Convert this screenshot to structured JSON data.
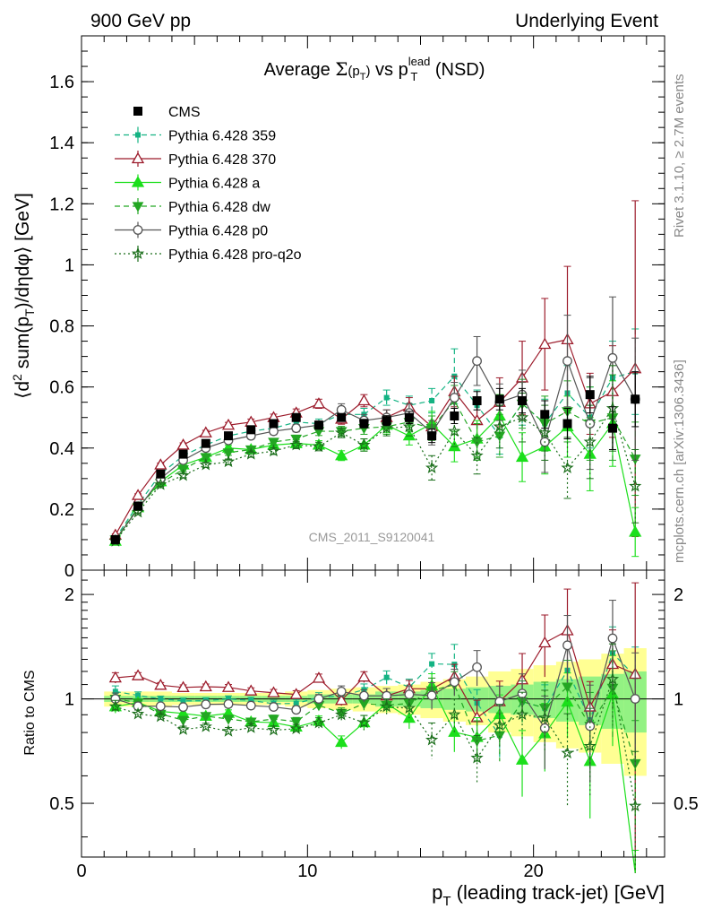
{
  "header": {
    "left": "900 GeV pp",
    "right": "Underlying Event"
  },
  "side": {
    "rivet": "Rivet 3.1.10, ≥ 2.7M events",
    "mcplots": "mcplots.cern.ch [arXiv:1306.3436]"
  },
  "chart_data": {
    "type": "line",
    "title": "Average Σ(pT) vs pT^lead (NSD)",
    "title_parts": {
      "pre": "Average ",
      "sigma": "Σ",
      "paren_open": "(p",
      "paren_sub": "T",
      "paren_close": ")",
      "mid": " vs p",
      "sup": "lead",
      "sub": "T",
      "post": " (NSD)"
    },
    "xlabel": "pT (leading track-jet) [GeV]",
    "xlabel_parts": {
      "p": "p",
      "sub": "T",
      "rest": " (leading track-jet) [GeV]"
    },
    "ylabel": "⟨d² sum(pT)/dηdφ⟩ [GeV]",
    "ylabel_parts": {
      "a": "⟨d",
      "sup": "2",
      "b": " sum(p",
      "sub": "T",
      "c": ")/dηdφ⟩ [GeV]"
    },
    "ratio_ylabel": "Ratio to CMS",
    "watermark": "CMS_2011_S9120041",
    "xlim": [
      0,
      25.8
    ],
    "ylim": [
      0,
      1.75
    ],
    "ratio_ylim": [
      0.35,
      2.35
    ],
    "ratio_log": true,
    "x_ticks": [
      0,
      10,
      20
    ],
    "y_ticks": [
      0,
      0.2,
      0.4,
      0.6,
      0.8,
      1,
      1.2,
      1.4,
      1.6
    ],
    "y_tick_labels": [
      "0",
      "0.2",
      "0.4",
      "0.6",
      "0.8",
      "1",
      "1.2",
      "1.4",
      "1.6"
    ],
    "ratio_ticks": [
      0.5,
      1,
      2
    ],
    "ratio_tick_labels": [
      "0.5",
      "1",
      "2"
    ],
    "x": [
      1.5,
      2.5,
      3.5,
      4.5,
      5.5,
      6.5,
      7.5,
      8.5,
      9.5,
      10.5,
      11.5,
      12.5,
      13.5,
      14.5,
      15.5,
      16.5,
      17.5,
      18.5,
      19.5,
      20.5,
      21.5,
      22.5,
      23.5,
      24.5
    ],
    "data_band_inner": [
      0.02,
      0.02,
      0.02,
      0.02,
      0.02,
      0.02,
      0.02,
      0.02,
      0.02,
      0.03,
      0.03,
      0.03,
      0.05,
      0.05,
      0.06,
      0.07,
      0.08,
      0.09,
      0.1,
      0.12,
      0.14,
      0.16,
      0.18,
      0.2
    ],
    "data_band_outer": [
      0.05,
      0.05,
      0.05,
      0.04,
      0.04,
      0.04,
      0.04,
      0.04,
      0.05,
      0.06,
      0.07,
      0.08,
      0.09,
      0.1,
      0.12,
      0.14,
      0.16,
      0.2,
      0.22,
      0.25,
      0.28,
      0.3,
      0.35,
      0.4
    ],
    "series": [
      {
        "name": "CMS",
        "color": "#000000",
        "marker": "square-filled",
        "line": "none",
        "values": [
          0.1,
          0.21,
          0.315,
          0.38,
          0.415,
          0.44,
          0.46,
          0.48,
          0.5,
          0.475,
          0.5,
          0.48,
          0.49,
          0.5,
          0.44,
          0.505,
          0.555,
          0.56,
          0.555,
          0.51,
          0.48,
          0.575,
          0.465,
          0.56
        ],
        "errors": [
          0.005,
          0.005,
          0.005,
          0.005,
          0.006,
          0.006,
          0.007,
          0.008,
          0.009,
          0.01,
          0.012,
          0.014,
          0.016,
          0.02,
          0.022,
          0.025,
          0.03,
          0.035,
          0.04,
          0.045,
          0.05,
          0.06,
          0.07,
          0.09
        ]
      },
      {
        "name": "Pythia 6.428 359",
        "color": "#14b383",
        "marker": "square-small",
        "line": "dashed",
        "values": [
          0.105,
          0.215,
          0.315,
          0.375,
          0.41,
          0.44,
          0.455,
          0.465,
          0.485,
          0.48,
          0.51,
          0.51,
          0.565,
          0.54,
          0.555,
          0.635,
          0.54,
          0.44,
          0.545,
          0.48,
          0.58,
          0.5,
          0.63,
          0.65
        ],
        "errors": [
          0.004,
          0.005,
          0.006,
          0.007,
          0.008,
          0.009,
          0.01,
          0.011,
          0.013,
          0.015,
          0.017,
          0.02,
          0.025,
          0.03,
          0.04,
          0.09,
          0.05,
          0.06,
          0.07,
          0.08,
          0.09,
          0.1,
          0.12,
          0.14
        ]
      },
      {
        "name": "Pythia 6.428 370",
        "color": "#9c1b2b",
        "marker": "triangle-open",
        "line": "solid",
        "values": [
          0.115,
          0.245,
          0.345,
          0.41,
          0.45,
          0.475,
          0.485,
          0.5,
          0.515,
          0.545,
          0.495,
          0.555,
          0.5,
          0.535,
          0.47,
          0.585,
          0.49,
          0.55,
          0.63,
          0.74,
          0.755,
          0.545,
          0.585,
          0.66
        ],
        "errors": [
          0.004,
          0.005,
          0.006,
          0.007,
          0.008,
          0.009,
          0.01,
          0.011,
          0.013,
          0.015,
          0.017,
          0.02,
          0.025,
          0.03,
          0.035,
          0.05,
          0.06,
          0.08,
          0.12,
          0.15,
          0.24,
          0.1,
          0.15,
          0.55
        ]
      },
      {
        "name": "Pythia 6.428 a",
        "color": "#1bdf1b",
        "marker": "triangle-filled",
        "line": "solid",
        "values": [
          0.095,
          0.205,
          0.29,
          0.345,
          0.37,
          0.4,
          0.395,
          0.41,
          0.415,
          0.41,
          0.375,
          0.41,
          0.475,
          0.44,
          0.48,
          0.405,
          0.43,
          0.505,
          0.37,
          0.405,
          0.47,
          0.38,
          0.48,
          0.125
        ],
        "errors": [
          0.004,
          0.005,
          0.006,
          0.007,
          0.008,
          0.009,
          0.01,
          0.011,
          0.012,
          0.014,
          0.016,
          0.02,
          0.025,
          0.03,
          0.04,
          0.05,
          0.06,
          0.07,
          0.08,
          0.09,
          0.1,
          0.12,
          0.14,
          0.08
        ]
      },
      {
        "name": "Pythia 6.428 dw",
        "color": "#23a623",
        "marker": "triangle-down-filled",
        "line": "dashed",
        "values": [
          0.1,
          0.205,
          0.285,
          0.33,
          0.37,
          0.385,
          0.395,
          0.42,
          0.43,
          0.455,
          0.455,
          0.465,
          0.47,
          0.485,
          0.465,
          0.555,
          0.42,
          0.44,
          0.545,
          0.48,
          0.52,
          0.48,
          0.5,
          0.365
        ],
        "errors": [
          0.004,
          0.005,
          0.006,
          0.007,
          0.008,
          0.009,
          0.01,
          0.011,
          0.012,
          0.014,
          0.016,
          0.02,
          0.025,
          0.03,
          0.04,
          0.05,
          0.06,
          0.07,
          0.08,
          0.09,
          0.1,
          0.12,
          0.14,
          0.12
        ]
      },
      {
        "name": "Pythia 6.428 p0",
        "color": "#555555",
        "marker": "circle-open",
        "line": "solid",
        "values": [
          0.1,
          0.2,
          0.3,
          0.36,
          0.4,
          0.425,
          0.44,
          0.455,
          0.465,
          0.475,
          0.525,
          0.49,
          0.5,
          0.515,
          0.45,
          0.565,
          0.685,
          0.55,
          0.575,
          0.42,
          0.685,
          0.48,
          0.695,
          0.56
        ],
        "errors": [
          0.004,
          0.005,
          0.006,
          0.007,
          0.008,
          0.009,
          0.01,
          0.011,
          0.012,
          0.014,
          0.02,
          0.02,
          0.025,
          0.03,
          0.04,
          0.05,
          0.08,
          0.06,
          0.08,
          0.1,
          0.15,
          0.15,
          0.2,
          0.2
        ]
      },
      {
        "name": "Pythia 6.428 pro-q2o",
        "color": "#1a6e1a",
        "marker": "star-open",
        "line": "dotted",
        "values": [
          0.095,
          0.19,
          0.28,
          0.31,
          0.345,
          0.355,
          0.38,
          0.39,
          0.41,
          0.405,
          0.45,
          0.41,
          0.465,
          0.47,
          0.335,
          0.455,
          0.375,
          0.47,
          0.5,
          0.45,
          0.335,
          0.42,
          0.53,
          0.275
        ],
        "errors": [
          0.004,
          0.005,
          0.006,
          0.007,
          0.008,
          0.009,
          0.01,
          0.011,
          0.012,
          0.014,
          0.016,
          0.02,
          0.025,
          0.03,
          0.04,
          0.05,
          0.06,
          0.07,
          0.08,
          0.09,
          0.1,
          0.12,
          0.14,
          0.12
        ]
      }
    ]
  }
}
